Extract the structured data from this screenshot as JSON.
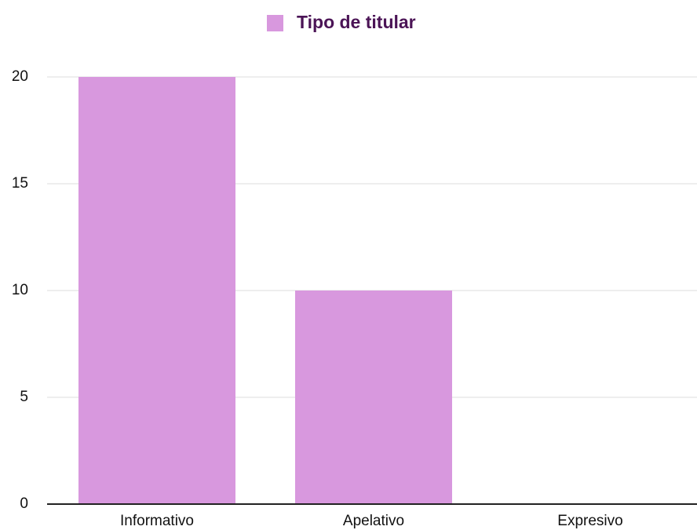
{
  "chart_data": {
    "type": "bar",
    "categories": [
      "Informativo",
      "Apelativo",
      "Expresivo"
    ],
    "series": [
      {
        "name": "Tipo de titular",
        "color": "#d898de",
        "values": [
          20,
          10,
          0
        ]
      }
    ],
    "ylim": [
      0,
      20
    ],
    "yticks": [
      0,
      5,
      10,
      15,
      20
    ],
    "grid": true,
    "legend": "top"
  }
}
